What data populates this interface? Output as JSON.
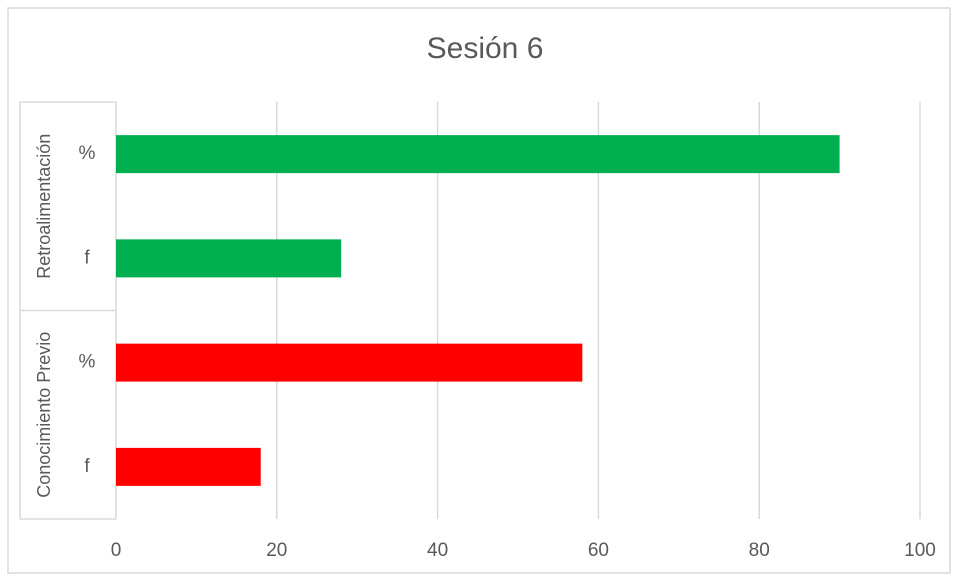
{
  "chart_data": {
    "type": "bar",
    "orientation": "horizontal",
    "title": "Sesión 6",
    "xlabel": "",
    "ylabel": "",
    "xlim": [
      0,
      100
    ],
    "ticks": [
      0,
      20,
      40,
      60,
      80,
      100
    ],
    "grid": true,
    "groups": [
      {
        "name": "Retroalimentación",
        "color": "#00b050",
        "bars": [
          {
            "label": "%",
            "value": 90
          },
          {
            "label": "f",
            "value": 28
          }
        ]
      },
      {
        "name": "Conocimiento Previo",
        "color": "#ff0000",
        "bars": [
          {
            "label": "%",
            "value": 58
          },
          {
            "label": "f",
            "value": 18
          }
        ]
      }
    ]
  }
}
